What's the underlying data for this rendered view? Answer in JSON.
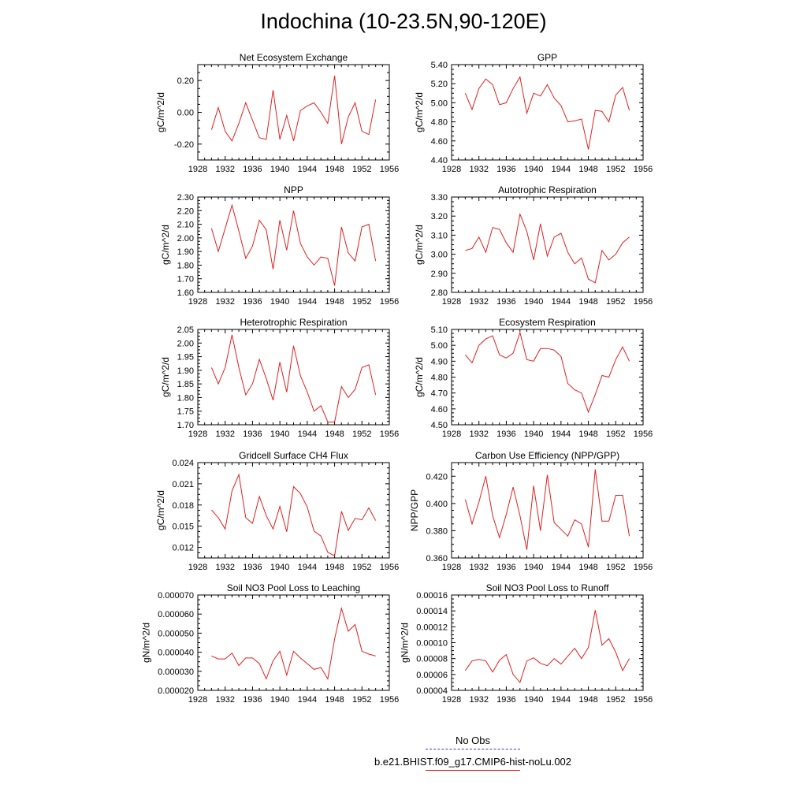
{
  "title": "Indochina (10-23.5N,90-120E)",
  "legend": {
    "obs_label": "No Obs",
    "obs_color": "#3b3bd0",
    "model_label": "b.e21.BHIST.f09_g17.CMIP6-hist-noLu.002",
    "model_color": "#e02020"
  },
  "chart_data": [
    {
      "type": "line",
      "title": "Net Ecosystem Exchange",
      "ylabel": "gC/m^2/d",
      "xlim": [
        1928,
        1956
      ],
      "ylim": [
        -0.3,
        0.3
      ],
      "xticks": [
        1928,
        1932,
        1936,
        1940,
        1944,
        1948,
        1952,
        1956
      ],
      "yticks": [
        -0.2,
        0.0,
        0.2
      ],
      "yticklabels": [
        "-0.20",
        "0.00",
        "0.20"
      ],
      "x": [
        1930,
        1931,
        1932,
        1933,
        1934,
        1935,
        1936,
        1937,
        1938,
        1939,
        1940,
        1941,
        1942,
        1943,
        1944,
        1945,
        1946,
        1947,
        1948,
        1949,
        1950,
        1951,
        1952,
        1953,
        1954
      ],
      "series": [
        {
          "color": "#e02020",
          "values": [
            -0.11,
            0.03,
            -0.12,
            -0.18,
            -0.07,
            0.06,
            -0.05,
            -0.16,
            -0.17,
            0.14,
            -0.17,
            -0.02,
            -0.18,
            0.01,
            0.04,
            0.06,
            0.0,
            -0.07,
            0.23,
            -0.2,
            -0.03,
            0.06,
            -0.12,
            -0.14,
            0.08
          ]
        }
      ]
    },
    {
      "type": "line",
      "title": "GPP",
      "ylabel": "gC/m^2/d",
      "xlim": [
        1928,
        1956
      ],
      "ylim": [
        4.4,
        5.4
      ],
      "xticks": [
        1928,
        1932,
        1936,
        1940,
        1944,
        1948,
        1952,
        1956
      ],
      "yticks": [
        4.4,
        4.6,
        4.8,
        5.0,
        5.2,
        5.4
      ],
      "yticklabels": [
        "4.40",
        "4.60",
        "4.80",
        "5.00",
        "5.20",
        "5.40"
      ],
      "x": [
        1930,
        1931,
        1932,
        1933,
        1934,
        1935,
        1936,
        1937,
        1938,
        1939,
        1940,
        1941,
        1942,
        1943,
        1944,
        1945,
        1946,
        1947,
        1948,
        1949,
        1950,
        1951,
        1952,
        1953,
        1954
      ],
      "series": [
        {
          "color": "#e02020",
          "values": [
            5.1,
            4.93,
            5.15,
            5.25,
            5.19,
            4.98,
            5.0,
            5.15,
            5.27,
            4.89,
            5.1,
            5.07,
            5.19,
            5.05,
            4.97,
            4.8,
            4.81,
            4.83,
            4.51,
            4.92,
            4.91,
            4.8,
            5.08,
            5.16,
            4.92
          ]
        }
      ]
    },
    {
      "type": "line",
      "title": "NPP",
      "ylabel": "gC/m^2/d",
      "xlim": [
        1928,
        1956
      ],
      "ylim": [
        1.6,
        2.3
      ],
      "xticks": [
        1928,
        1932,
        1936,
        1940,
        1944,
        1948,
        1952,
        1956
      ],
      "yticks": [
        1.6,
        1.7,
        1.8,
        1.9,
        2.0,
        2.1,
        2.2,
        2.3
      ],
      "yticklabels": [
        "1.60",
        "1.70",
        "1.80",
        "1.90",
        "2.00",
        "2.10",
        "2.20",
        "2.30"
      ],
      "x": [
        1930,
        1931,
        1932,
        1933,
        1934,
        1935,
        1936,
        1937,
        1938,
        1939,
        1940,
        1941,
        1942,
        1943,
        1944,
        1945,
        1946,
        1947,
        1948,
        1949,
        1950,
        1951,
        1952,
        1953,
        1954
      ],
      "series": [
        {
          "color": "#e02020",
          "values": [
            2.07,
            1.9,
            2.07,
            2.24,
            2.05,
            1.85,
            1.94,
            2.13,
            2.06,
            1.77,
            2.13,
            1.91,
            2.2,
            1.96,
            1.86,
            1.8,
            1.86,
            1.85,
            1.65,
            2.08,
            1.89,
            1.83,
            2.08,
            2.1,
            1.83
          ]
        }
      ]
    },
    {
      "type": "line",
      "title": "Autotrophic Respiration",
      "ylabel": "gC/m^2/d",
      "xlim": [
        1928,
        1956
      ],
      "ylim": [
        2.8,
        3.3
      ],
      "xticks": [
        1928,
        1932,
        1936,
        1940,
        1944,
        1948,
        1952,
        1956
      ],
      "yticks": [
        2.8,
        2.9,
        3.0,
        3.1,
        3.2,
        3.3
      ],
      "yticklabels": [
        "2.80",
        "2.90",
        "3.00",
        "3.10",
        "3.20",
        "3.30"
      ],
      "x": [
        1930,
        1931,
        1932,
        1933,
        1934,
        1935,
        1936,
        1937,
        1938,
        1939,
        1940,
        1941,
        1942,
        1943,
        1944,
        1945,
        1946,
        1947,
        1948,
        1949,
        1950,
        1951,
        1952,
        1953,
        1954
      ],
      "series": [
        {
          "color": "#e02020",
          "values": [
            3.02,
            3.03,
            3.09,
            3.01,
            3.14,
            3.13,
            3.06,
            3.01,
            3.21,
            3.12,
            2.97,
            3.16,
            2.99,
            3.09,
            3.11,
            3.01,
            2.95,
            2.98,
            2.87,
            2.85,
            3.02,
            2.97,
            3.0,
            3.06,
            3.09
          ]
        }
      ]
    },
    {
      "type": "line",
      "title": "Heterotrophic Respiration",
      "ylabel": "gC/m^2/d",
      "xlim": [
        1928,
        1956
      ],
      "ylim": [
        1.7,
        2.05
      ],
      "xticks": [
        1928,
        1932,
        1936,
        1940,
        1944,
        1948,
        1952,
        1956
      ],
      "yticks": [
        1.7,
        1.75,
        1.8,
        1.85,
        1.9,
        1.95,
        2.0,
        2.05
      ],
      "yticklabels": [
        "1.70",
        "1.75",
        "1.80",
        "1.85",
        "1.90",
        "1.95",
        "2.00",
        "2.05"
      ],
      "x": [
        1930,
        1931,
        1932,
        1933,
        1934,
        1935,
        1936,
        1937,
        1938,
        1939,
        1940,
        1941,
        1942,
        1943,
        1944,
        1945,
        1946,
        1947,
        1948,
        1949,
        1950,
        1951,
        1952,
        1953,
        1954
      ],
      "series": [
        {
          "color": "#e02020",
          "values": [
            1.91,
            1.85,
            1.91,
            2.03,
            1.91,
            1.81,
            1.85,
            1.94,
            1.87,
            1.79,
            1.93,
            1.82,
            1.99,
            1.88,
            1.82,
            1.75,
            1.77,
            1.71,
            1.71,
            1.84,
            1.8,
            1.83,
            1.91,
            1.92,
            1.81
          ]
        }
      ]
    },
    {
      "type": "line",
      "title": "Ecosystem Respiration",
      "ylabel": "gC/m^2/d",
      "xlim": [
        1928,
        1956
      ],
      "ylim": [
        4.5,
        5.1
      ],
      "xticks": [
        1928,
        1932,
        1936,
        1940,
        1944,
        1948,
        1952,
        1956
      ],
      "yticks": [
        4.5,
        4.6,
        4.7,
        4.8,
        4.9,
        5.0,
        5.1
      ],
      "yticklabels": [
        "4.50",
        "4.60",
        "4.70",
        "4.80",
        "4.90",
        "5.00",
        "5.10"
      ],
      "x": [
        1930,
        1931,
        1932,
        1933,
        1934,
        1935,
        1936,
        1937,
        1938,
        1939,
        1940,
        1941,
        1942,
        1943,
        1944,
        1945,
        1946,
        1947,
        1948,
        1949,
        1950,
        1951,
        1952,
        1953,
        1954
      ],
      "series": [
        {
          "color": "#e02020",
          "values": [
            4.94,
            4.89,
            5.0,
            5.04,
            5.06,
            4.94,
            4.92,
            4.95,
            5.08,
            4.91,
            4.9,
            4.98,
            4.98,
            4.97,
            4.93,
            4.76,
            4.72,
            4.7,
            4.58,
            4.69,
            4.81,
            4.8,
            4.91,
            4.99,
            4.9
          ]
        }
      ]
    },
    {
      "type": "line",
      "title": "Gridcell Surface CH4 Flux",
      "ylabel": "gC/m^2/d",
      "xlim": [
        1928,
        1956
      ],
      "ylim": [
        0.0105,
        0.024
      ],
      "xticks": [
        1928,
        1932,
        1936,
        1940,
        1944,
        1948,
        1952,
        1956
      ],
      "yticks": [
        0.012,
        0.015,
        0.018,
        0.021,
        0.024
      ],
      "yticklabels": [
        "0.012",
        "0.015",
        "0.018",
        "0.021",
        "0.024"
      ],
      "x": [
        1930,
        1931,
        1932,
        1933,
        1934,
        1935,
        1936,
        1937,
        1938,
        1939,
        1940,
        1941,
        1942,
        1943,
        1944,
        1945,
        1946,
        1947,
        1948,
        1949,
        1950,
        1951,
        1952,
        1953,
        1954
      ],
      "series": [
        {
          "color": "#e02020",
          "values": [
            0.0173,
            0.0162,
            0.0146,
            0.02,
            0.0223,
            0.0162,
            0.0154,
            0.0192,
            0.0165,
            0.0146,
            0.0178,
            0.0142,
            0.0206,
            0.0196,
            0.0177,
            0.0143,
            0.0136,
            0.0113,
            0.0108,
            0.0171,
            0.0144,
            0.0161,
            0.0159,
            0.0176,
            0.0158
          ]
        }
      ]
    },
    {
      "type": "line",
      "title": "Carbon Use Efficiency (NPP/GPP)",
      "ylabel": "NPP/GPP",
      "xlim": [
        1928,
        1956
      ],
      "ylim": [
        0.36,
        0.43
      ],
      "xticks": [
        1928,
        1932,
        1936,
        1940,
        1944,
        1948,
        1952,
        1956
      ],
      "yticks": [
        0.36,
        0.38,
        0.4,
        0.42
      ],
      "yticklabels": [
        "0.360",
        "0.380",
        "0.400",
        "0.420"
      ],
      "x": [
        1930,
        1931,
        1932,
        1933,
        1934,
        1935,
        1936,
        1937,
        1938,
        1939,
        1940,
        1941,
        1942,
        1943,
        1944,
        1945,
        1946,
        1947,
        1948,
        1949,
        1950,
        1951,
        1952,
        1953,
        1954
      ],
      "series": [
        {
          "color": "#e02020",
          "values": [
            0.403,
            0.385,
            0.401,
            0.42,
            0.391,
            0.375,
            0.392,
            0.412,
            0.391,
            0.366,
            0.413,
            0.38,
            0.421,
            0.386,
            0.381,
            0.376,
            0.388,
            0.385,
            0.368,
            0.425,
            0.387,
            0.387,
            0.406,
            0.406,
            0.376
          ]
        }
      ]
    },
    {
      "type": "line",
      "title": "Soil NO3 Pool Loss to Leaching",
      "ylabel": "gN/m^2/d",
      "xlim": [
        1928,
        1956
      ],
      "ylim": [
        2e-05,
        7e-05
      ],
      "xticks": [
        1928,
        1932,
        1936,
        1940,
        1944,
        1948,
        1952,
        1956
      ],
      "yticks": [
        2e-05,
        3e-05,
        4e-05,
        5e-05,
        6e-05,
        7e-05
      ],
      "yticklabels": [
        "0.000020",
        "0.000030",
        "0.000040",
        "0.000050",
        "0.000060",
        "0.000070"
      ],
      "x": [
        1930,
        1931,
        1932,
        1933,
        1934,
        1935,
        1936,
        1937,
        1938,
        1939,
        1940,
        1941,
        1942,
        1943,
        1944,
        1945,
        1946,
        1947,
        1948,
        1949,
        1950,
        1951,
        1952,
        1953,
        1954
      ],
      "series": [
        {
          "color": "#e02020",
          "values": [
            3.8e-05,
            3.65e-05,
            3.65e-05,
            3.95e-05,
            3.3e-05,
            3.7e-05,
            3.7e-05,
            3.4e-05,
            2.6e-05,
            3.55e-05,
            4.05e-05,
            2.8e-05,
            4.05e-05,
            3.7e-05,
            3.4e-05,
            3.1e-05,
            3.2e-05,
            2.6e-05,
            4.7e-05,
            6.3e-05,
            5.1e-05,
            5.45e-05,
            4.05e-05,
            3.9e-05,
            3.8e-05
          ]
        }
      ]
    },
    {
      "type": "line",
      "title": "Soil NO3 Pool Loss to Runoff",
      "ylabel": "gN/m^2/d",
      "xlim": [
        1928,
        1956
      ],
      "ylim": [
        4e-05,
        0.00016
      ],
      "xticks": [
        1928,
        1932,
        1936,
        1940,
        1944,
        1948,
        1952,
        1956
      ],
      "yticks": [
        4e-05,
        6e-05,
        8e-05,
        0.0001,
        0.00012,
        0.00014,
        0.00016
      ],
      "yticklabels": [
        "0.00004",
        "0.00006",
        "0.00008",
        "0.00010",
        "0.00012",
        "0.00014",
        "0.00016"
      ],
      "x": [
        1930,
        1931,
        1932,
        1933,
        1934,
        1935,
        1936,
        1937,
        1938,
        1939,
        1940,
        1941,
        1942,
        1943,
        1944,
        1945,
        1946,
        1947,
        1948,
        1949,
        1950,
        1951,
        1952,
        1953,
        1954
      ],
      "series": [
        {
          "color": "#e02020",
          "values": [
            6.5e-05,
            7.7e-05,
            7.9e-05,
            7.7e-05,
            6.3e-05,
            7.8e-05,
            8.5e-05,
            6e-05,
            5e-05,
            7.7e-05,
            8.1e-05,
            7.4e-05,
            7.1e-05,
            8e-05,
            7.3e-05,
            8.3e-05,
            9.3e-05,
            8e-05,
            9.4e-05,
            0.000141,
            9.7e-05,
            0.000105,
            8.8e-05,
            6.5e-05,
            8e-05
          ]
        }
      ]
    }
  ]
}
